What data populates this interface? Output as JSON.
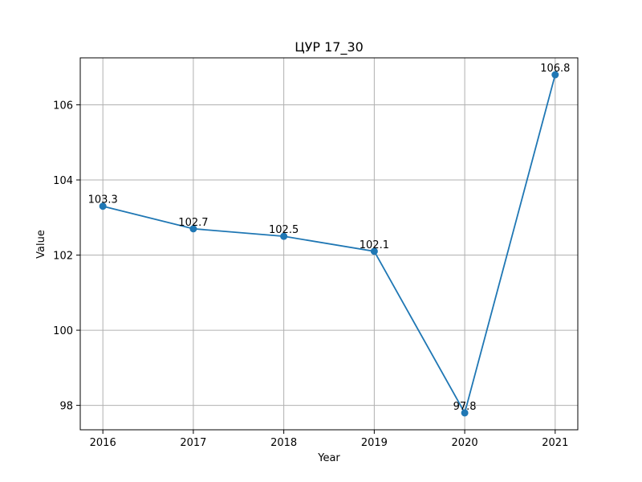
{
  "chart_data": {
    "type": "line",
    "title": "ЦУР 17_30",
    "xlabel": "Year",
    "ylabel": "Value",
    "x": [
      2016,
      2017,
      2018,
      2019,
      2020,
      2021
    ],
    "series": [
      {
        "values": [
          103.3,
          102.7,
          102.5,
          102.1,
          97.8,
          106.8
        ],
        "color": "#1f77b4",
        "marker": "circle"
      }
    ],
    "data_labels": [
      "103.3",
      "102.7",
      "102.5",
      "102.1",
      "97.8",
      "106.8"
    ],
    "x_ticks": [
      "2016",
      "2017",
      "2018",
      "2019",
      "2020",
      "2021"
    ],
    "y_ticks": [
      98,
      100,
      102,
      104,
      106
    ],
    "y_tick_labels": [
      "98",
      "100",
      "102",
      "104",
      "106"
    ],
    "xlim": [
      2015.75,
      2021.25
    ],
    "ylim": [
      97.35,
      107.25
    ],
    "grid": true,
    "legend": false
  }
}
